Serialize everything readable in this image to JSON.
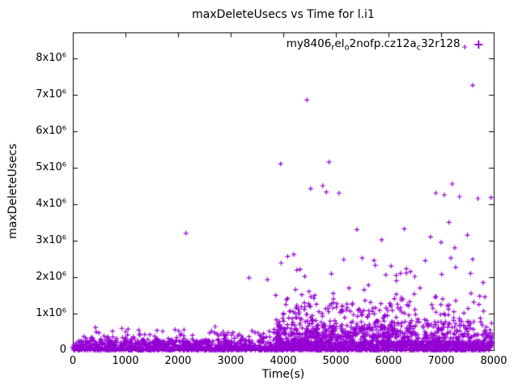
{
  "chart_data": {
    "type": "scatter",
    "title": "maxDeleteUsecs vs Time for l.i1",
    "xlabel": "Time(s)",
    "ylabel": "maxDeleteUsecs",
    "series_name": "my8406_rel_o2nofp.cz12a_c32r128",
    "legend_segments": [
      {
        "text": "my8406"
      },
      {
        "text": "r",
        "sub": true
      },
      {
        "text": "el"
      },
      {
        "text": "o",
        "sub": true
      },
      {
        "text": "2nofp.cz12a"
      },
      {
        "text": "c",
        "sub": true
      },
      {
        "text": "32r128"
      }
    ],
    "legend_position": "top-right-inside",
    "marker": "plus",
    "marker_glyph": "+",
    "color": "#9400d3",
    "grid": false,
    "xlim": [
      0,
      8000
    ],
    "ylim": [
      0,
      8700000
    ],
    "x_ticks": [
      0,
      1000,
      2000,
      3000,
      4000,
      5000,
      6000,
      7000,
      8000
    ],
    "x_tick_labels": [
      "0",
      "1000",
      "2000",
      "3000",
      "4000",
      "5000",
      "6000",
      "7000",
      "8000"
    ],
    "y_ticks": [
      0,
      1000000,
      2000000,
      3000000,
      4000000,
      5000000,
      6000000,
      7000000,
      8000000
    ],
    "y_tick_labels": [
      "0",
      "1x10⁶",
      "2x10⁶",
      "3x10⁶",
      "4x10⁶",
      "5x10⁶",
      "6x10⁶",
      "7x10⁶",
      "8x10⁶"
    ],
    "outliers": [
      [
        430,
        620000
      ],
      [
        1600,
        540000
      ],
      [
        2150,
        3200000
      ],
      [
        2600,
        470000
      ],
      [
        3350,
        1980000
      ],
      [
        3700,
        1930000
      ],
      [
        3950,
        5100000
      ],
      [
        4050,
        1250000
      ],
      [
        4200,
        2620000
      ],
      [
        4320,
        2210000
      ],
      [
        4450,
        6850000
      ],
      [
        4520,
        4420000
      ],
      [
        4600,
        1500000
      ],
      [
        4750,
        4500000
      ],
      [
        4820,
        4330000
      ],
      [
        4870,
        5150000
      ],
      [
        4950,
        1550000
      ],
      [
        5060,
        4300000
      ],
      [
        5150,
        2480000
      ],
      [
        5250,
        1700000
      ],
      [
        5400,
        3300000
      ],
      [
        5500,
        2520000
      ],
      [
        5620,
        1780000
      ],
      [
        5750,
        2320000
      ],
      [
        5870,
        3020000
      ],
      [
        5950,
        2060000
      ],
      [
        6050,
        2300000
      ],
      [
        6150,
        1900000
      ],
      [
        6300,
        3320000
      ],
      [
        6420,
        2150000
      ],
      [
        6600,
        1700000
      ],
      [
        6700,
        2450000
      ],
      [
        6800,
        3100000
      ],
      [
        6900,
        4300000
      ],
      [
        7000,
        2950000
      ],
      [
        7060,
        4250000
      ],
      [
        7150,
        3500000
      ],
      [
        7210,
        4550000
      ],
      [
        7260,
        2800000
      ],
      [
        7350,
        4200000
      ],
      [
        7450,
        8300000
      ],
      [
        7500,
        3150000
      ],
      [
        7560,
        2100000
      ],
      [
        7600,
        7250000
      ],
      [
        7700,
        4150000
      ],
      [
        7800,
        1850000
      ],
      [
        7950,
        4180000
      ]
    ],
    "dense_clusters": [
      {
        "count": 1500,
        "x": [
          0,
          7950
        ],
        "y": [
          0,
          260000
        ],
        "bias": 1.6
      },
      {
        "count": 400,
        "x": [
          20,
          7950
        ],
        "y": [
          0,
          520000
        ],
        "bias": 2.2
      },
      {
        "count": 50,
        "x": [
          100,
          3700
        ],
        "y": [
          250000,
          650000
        ],
        "bias": 1.8
      },
      {
        "count": 520,
        "x": [
          3800,
          7980
        ],
        "y": [
          120000,
          820000
        ],
        "bias": 1.9
      },
      {
        "count": 210,
        "x": [
          4400,
          6150
        ],
        "y": [
          350000,
          1320000
        ],
        "bias": 1.7
      },
      {
        "count": 60,
        "x": [
          3850,
          4450
        ],
        "y": [
          300000,
          1230000
        ],
        "bias": 1.4
      },
      {
        "count": 95,
        "x": [
          6100,
          7960
        ],
        "y": [
          350000,
          1600000
        ],
        "bias": 1.9
      },
      {
        "count": 30,
        "x": [
          3300,
          7900
        ],
        "y": [
          1350000,
          2600000
        ],
        "bias": 1.3
      }
    ],
    "seed": 1337
  }
}
